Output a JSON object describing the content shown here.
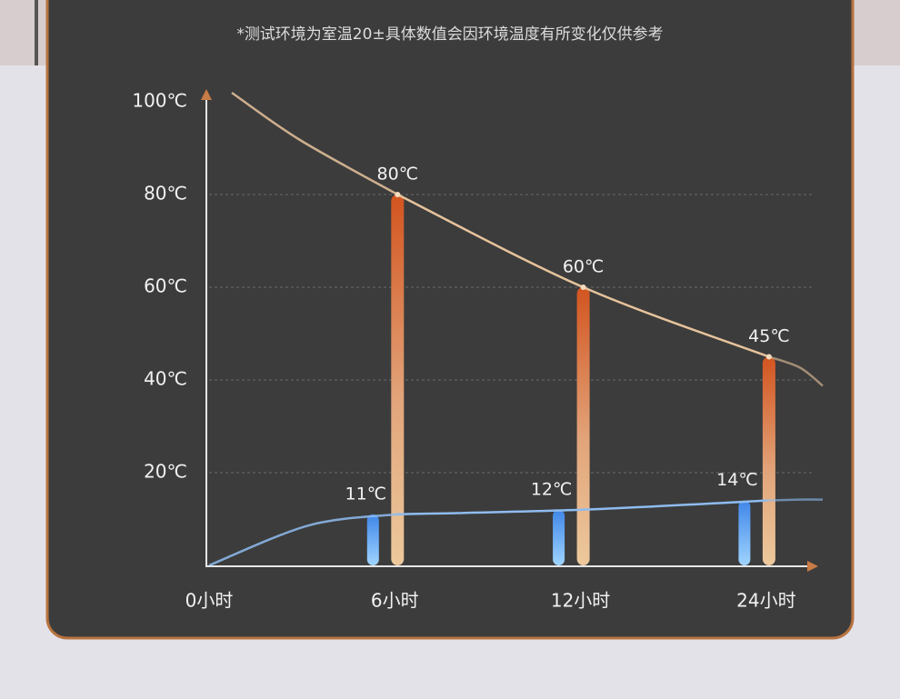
{
  "chart_data": {
    "type": "bar",
    "subtitle": "*测试环境为室温20±具体数值会因环境温度有所变化仅供参考",
    "categories": [
      "0小时",
      "6小时",
      "12小时",
      "24小时"
    ],
    "series": [
      {
        "color": "#d2541f",
        "values": [
          null,
          80,
          60,
          45
        ],
        "value_labels": [
          null,
          "80℃",
          "60℃",
          "45℃"
        ]
      },
      {
        "color": "#4d95ea",
        "values": [
          null,
          11,
          12,
          14
        ],
        "value_labels": [
          null,
          "11℃",
          "12℃",
          "14℃"
        ]
      }
    ],
    "ylim": [
      0,
      100
    ],
    "yticks": [
      {
        "value": 20,
        "label": "20℃"
      },
      {
        "value": 40,
        "label": "40℃"
      },
      {
        "value": 60,
        "label": "60℃"
      },
      {
        "value": 80,
        "label": "80℃"
      },
      {
        "value": 100,
        "label": "100℃"
      }
    ],
    "grid": true
  }
}
